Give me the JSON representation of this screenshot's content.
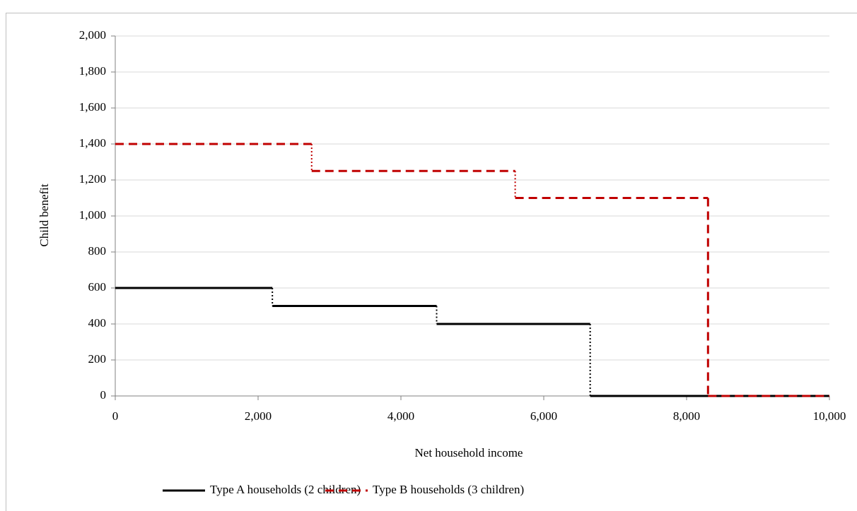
{
  "chart_data": {
    "type": "step",
    "xlabel": "Net household income",
    "ylabel": "Child benefit",
    "xlim": [
      0,
      10000
    ],
    "xticks": [
      0,
      {
        "value": 2000,
        "label": "2,000"
      },
      {
        "value": 4000,
        "label": "4,000"
      },
      {
        "value": 6000,
        "label": "6,000"
      },
      {
        "value": 8000,
        "label": "8,000"
      },
      {
        "value": 10000,
        "label": "10,000"
      }
    ],
    "ylim": [
      0,
      2000
    ],
    "yticks": [
      0,
      200,
      400,
      600,
      800,
      {
        "value": 1000,
        "label": "1,000"
      },
      {
        "value": 1200,
        "label": "1,200"
      },
      {
        "value": 1400,
        "label": "1,400"
      },
      {
        "value": 1600,
        "label": "1,600"
      },
      {
        "value": 1800,
        "label": "1,800"
      },
      {
        "value": 2000,
        "label": "2,000"
      }
    ],
    "grid": true,
    "legend": "bottom",
    "series": [
      {
        "name": "Type A households (2 children)",
        "color": "#000000",
        "style": "solid",
        "x": [
          0,
          2200,
          4500,
          6650,
          10000
        ],
        "values": [
          600,
          500,
          400,
          0,
          0
        ]
      },
      {
        "name": "Type B households (3 children)",
        "color": "#c00000",
        "style": "dashed",
        "x": [
          0,
          2750,
          5600,
          8300,
          10000
        ],
        "values": [
          1400,
          1250,
          1100,
          0,
          0
        ]
      }
    ]
  }
}
